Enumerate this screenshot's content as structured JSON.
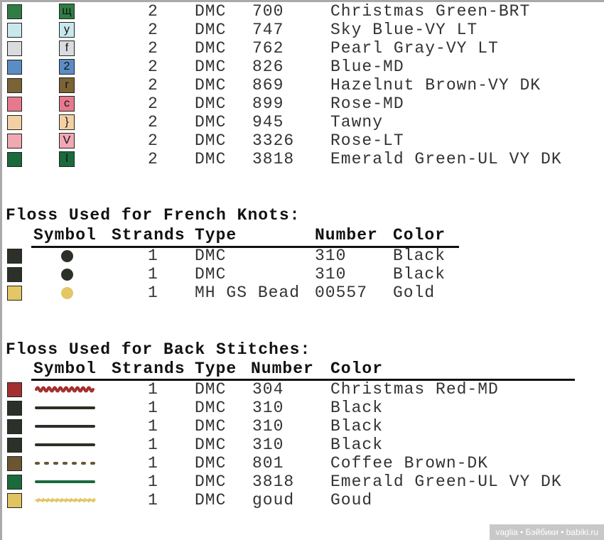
{
  "full_stitches": [
    {
      "swatch": "#2f7d45",
      "symbol": "щ",
      "strands": "2",
      "type": "DMC",
      "number": "700",
      "color": "Christmas Green-BRT"
    },
    {
      "swatch": "#c8e8ec",
      "symbol": "y",
      "strands": "2",
      "type": "DMC",
      "number": "747",
      "color": "Sky Blue-VY LT"
    },
    {
      "swatch": "#d9dcdf",
      "symbol": "f",
      "strands": "2",
      "type": "DMC",
      "number": "762",
      "color": "Pearl Gray-VY LT"
    },
    {
      "swatch": "#5b8dc4",
      "symbol": "2",
      "strands": "2",
      "type": "DMC",
      "number": "826",
      "color": "Blue-MD"
    },
    {
      "swatch": "#7a6334",
      "symbol": "r",
      "strands": "2",
      "type": "DMC",
      "number": "869",
      "color": "Hazelnut Brown-VY DK"
    },
    {
      "swatch": "#e57a8e",
      "symbol": "c",
      "strands": "2",
      "type": "DMC",
      "number": "899",
      "color": "Rose-MD"
    },
    {
      "swatch": "#f3d0a4",
      "symbol": "}",
      "strands": "2",
      "type": "DMC",
      "number": "945",
      "color": "Tawny"
    },
    {
      "swatch": "#f0a8b2",
      "symbol": "V",
      "strands": "2",
      "type": "DMC",
      "number": "3326",
      "color": "Rose-LT"
    },
    {
      "swatch": "#1a6a3c",
      "symbol": "l",
      "strands": "2",
      "type": "DMC",
      "number": "3818",
      "color": "Emerald Green-UL VY DK"
    }
  ],
  "french_knots": {
    "title": "Floss Used for French Knots:",
    "headers": {
      "symbol": "Symbol",
      "strands": "Strands",
      "type": "Type",
      "number": "Number",
      "color": "Color"
    },
    "rows": [
      {
        "swatch": "#2b3028",
        "strands": "1",
        "type": "DMC",
        "number": "310",
        "color": "Black"
      },
      {
        "swatch": "#2b3028",
        "strands": "1",
        "type": "DMC",
        "number": "310",
        "color": "Black"
      },
      {
        "swatch": "#e3c665",
        "strands": "1",
        "type": "MH GS Bead",
        "number": "00557",
        "color": "Gold"
      }
    ]
  },
  "back_stitches": {
    "title": "Floss Used for Back Stitches:",
    "headers": {
      "symbol": "Symbol",
      "strands": "Strands",
      "type": "Type",
      "number": "Number",
      "color": "Color"
    },
    "rows": [
      {
        "swatch": "#a3302f",
        "line": "wavy",
        "strands": "1",
        "type": "DMC",
        "number": "304",
        "color": "Christmas Red-MD"
      },
      {
        "swatch": "#2b3028",
        "line": "solid",
        "strands": "1",
        "type": "DMC",
        "number": "310",
        "color": "Black"
      },
      {
        "swatch": "#2b3028",
        "line": "solid",
        "strands": "1",
        "type": "DMC",
        "number": "310",
        "color": "Black"
      },
      {
        "swatch": "#2b3028",
        "line": "solid",
        "strands": "1",
        "type": "DMC",
        "number": "310",
        "color": "Black"
      },
      {
        "swatch": "#6b5532",
        "line": "dotted",
        "strands": "1",
        "type": "DMC",
        "number": "801",
        "color": "Coffee Brown-DK"
      },
      {
        "swatch": "#1a6a3c",
        "line": "solid",
        "strands": "1",
        "type": "DMC",
        "number": "3818",
        "color": "Emerald Green-UL VY DK"
      },
      {
        "swatch": "#e0c462",
        "line": "beaded",
        "strands": "1",
        "type": "DMC",
        "number": "goud",
        "color": "Goud"
      }
    ]
  },
  "watermark": "vaglia • Бэйбики • babiki.ru"
}
